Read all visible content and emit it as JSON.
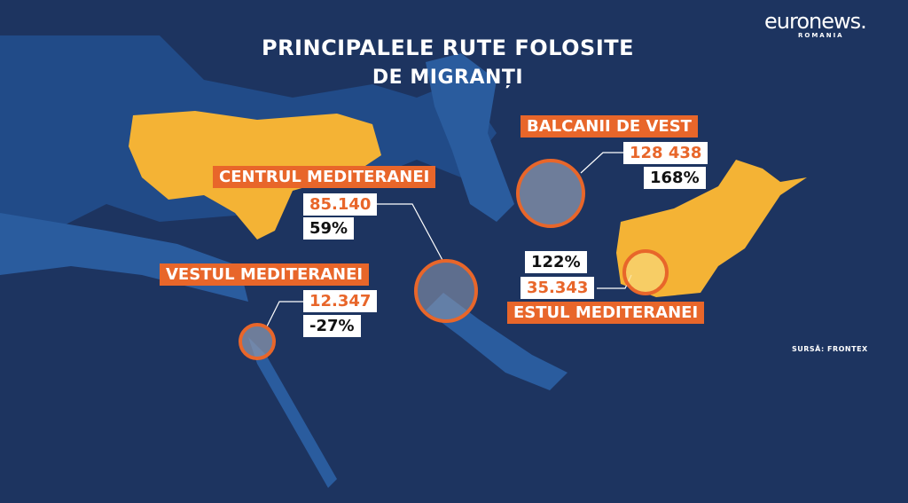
{
  "header": {
    "title_line1": "PRINCIPALELE RUTE FOLOSITE",
    "title_line2": "DE MIGRANȚI"
  },
  "logo": {
    "name": "euronews.",
    "region": "ROMANIA"
  },
  "routes": [
    {
      "name": "BALCANII DE VEST",
      "count": "128 438",
      "change": "168%"
    },
    {
      "name": "CENTRUL MEDITERANEI",
      "count": "85.140",
      "change": "59%"
    },
    {
      "name": "VESTUL MEDITERANEI",
      "count": "12.347",
      "change": "-27%"
    },
    {
      "name": "ESTUL MEDITERANEI",
      "count": "35.343",
      "change": "122%"
    }
  ],
  "source": "SURSĂ: FRONTEX"
}
